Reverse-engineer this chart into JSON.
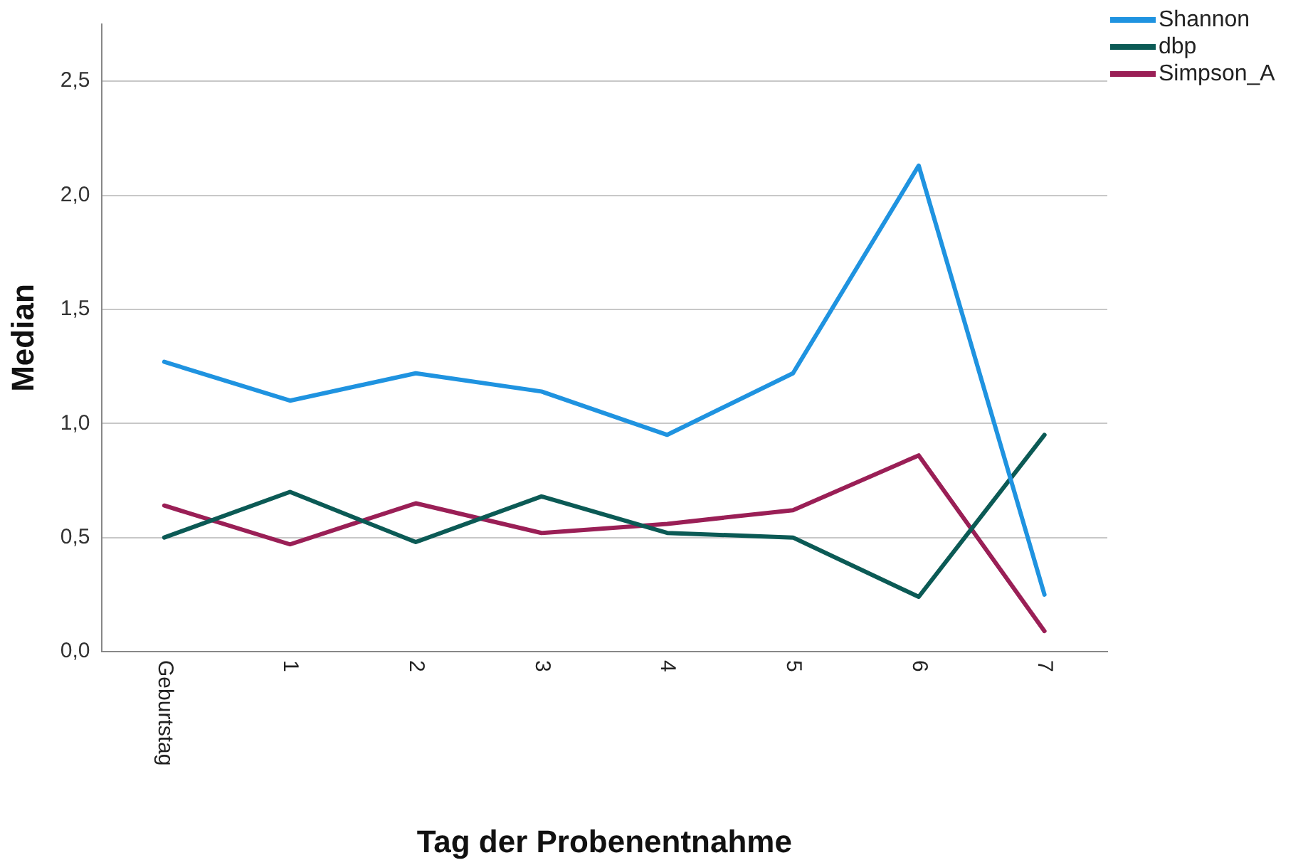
{
  "chart_data": {
    "type": "line",
    "xlabel": "Tag der Probenentnahme",
    "ylabel": "Median",
    "categories": [
      "Geburtstag",
      "1",
      "2",
      "3",
      "4",
      "5",
      "6",
      "7"
    ],
    "series": [
      {
        "name": "Shannon",
        "color": "#1f93e0",
        "values": [
          1.27,
          1.1,
          1.22,
          1.14,
          0.95,
          1.22,
          2.13,
          0.25
        ]
      },
      {
        "name": "dbp",
        "color": "#0b5a55",
        "values": [
          0.5,
          0.7,
          0.48,
          0.68,
          0.52,
          0.5,
          0.24,
          0.95
        ]
      },
      {
        "name": "Simpson_A",
        "color": "#9a1f56",
        "values": [
          0.64,
          0.47,
          0.65,
          0.52,
          0.56,
          0.62,
          0.86,
          0.09
        ]
      }
    ],
    "ylim": [
      0,
      2.75
    ],
    "yticks": [
      {
        "value": 0,
        "label": "0,0"
      },
      {
        "value": 0.5,
        "label": "0,5"
      },
      {
        "value": 1,
        "label": "1,0"
      },
      {
        "value": 1.5,
        "label": "1,5"
      },
      {
        "value": 2,
        "label": "2,0"
      },
      {
        "value": 2.5,
        "label": "2,5"
      }
    ],
    "grid": "y",
    "legend": "top right",
    "marker": "none",
    "line_style": "solid"
  }
}
